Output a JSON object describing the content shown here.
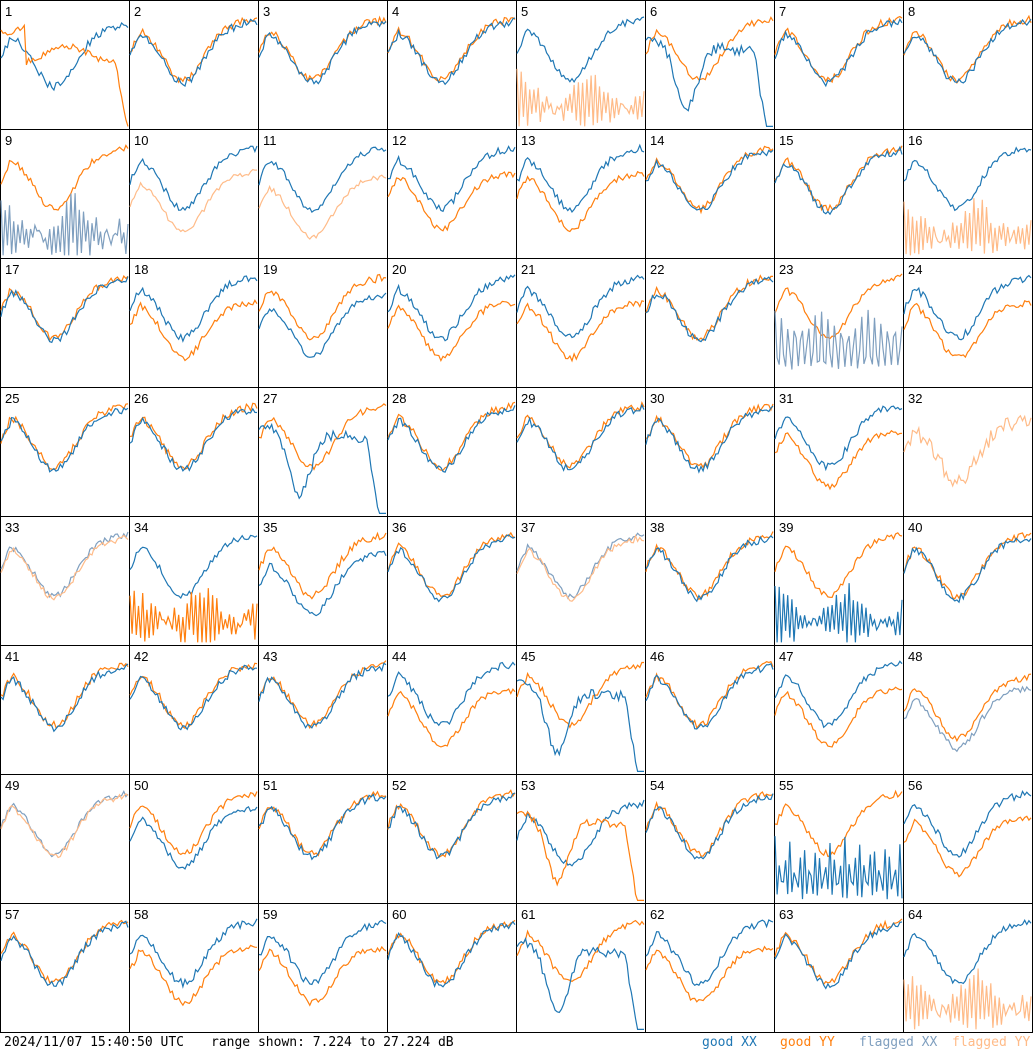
{
  "footer": {
    "timestamp": "2024/11/07 15:40:50 UTC",
    "range_text": "range shown: 7.224 to 27.224 dB"
  },
  "legend": {
    "good_xx": "good XX",
    "good_yy": "good YY",
    "flagged_xx": "flagged XX",
    "flagged_yy": "flagged YY"
  },
  "colors": {
    "good_xx": "#1f77b4",
    "good_yy": "#ff7f0e",
    "flagged_xx": "#7f9fbf",
    "flagged_yy": "#ffbb88"
  },
  "chart_data": {
    "type": "line",
    "layout": "8x8 small multiples",
    "panel_labels": [
      "1",
      "2",
      "3",
      "4",
      "5",
      "6",
      "7",
      "8",
      "9",
      "10",
      "11",
      "12",
      "13",
      "14",
      "15",
      "16",
      "17",
      "18",
      "19",
      "20",
      "21",
      "22",
      "23",
      "24",
      "25",
      "26",
      "27",
      "28",
      "29",
      "30",
      "31",
      "32",
      "33",
      "34",
      "35",
      "36",
      "37",
      "38",
      "39",
      "40",
      "41",
      "42",
      "43",
      "44",
      "45",
      "46",
      "47",
      "48",
      "49",
      "50",
      "51",
      "52",
      "53",
      "54",
      "55",
      "56",
      "57",
      "58",
      "59",
      "60",
      "61",
      "62",
      "63",
      "64"
    ],
    "ylim": [
      7.224,
      27.224
    ],
    "yunit": "dB",
    "series": [
      {
        "name": "good XX"
      },
      {
        "name": "good YY"
      },
      {
        "name": "flagged XX"
      },
      {
        "name": "flagged YY"
      }
    ],
    "panel_types": {
      "1": "lowx",
      "2": "n",
      "3": "n",
      "4": "n",
      "5": "x5",
      "6": "x6",
      "7": "n",
      "8": "n",
      "9": "f9",
      "10": "f10",
      "11": "f11",
      "12": "yl",
      "13": "yl",
      "14": "n",
      "15": "n",
      "16": "x16",
      "17": "n",
      "18": "yl",
      "19": "xl",
      "20": "yl",
      "21": "yl",
      "22": "n",
      "23": "f23",
      "24": "yl",
      "25": "n",
      "26": "n",
      "27": "x6",
      "28": "n",
      "29": "n",
      "30": "n",
      "31": "yl",
      "32": "f32",
      "33": "fboth",
      "34": "x34",
      "35": "xl",
      "36": "n",
      "37": "fboth",
      "38": "n",
      "39": "x39",
      "40": "n",
      "41": "n",
      "42": "n",
      "43": "n",
      "44": "yl",
      "45": "x6",
      "46": "n",
      "47": "yl",
      "48": "f48",
      "49": "fboth",
      "50": "x50",
      "51": "n",
      "52": "n",
      "53": "x53",
      "54": "n",
      "55": "x55",
      "56": "yl",
      "57": "n",
      "58": "yl",
      "59": "yl",
      "60": "n",
      "61": "x6",
      "62": "yl",
      "63": "n",
      "64": "x16"
    }
  }
}
